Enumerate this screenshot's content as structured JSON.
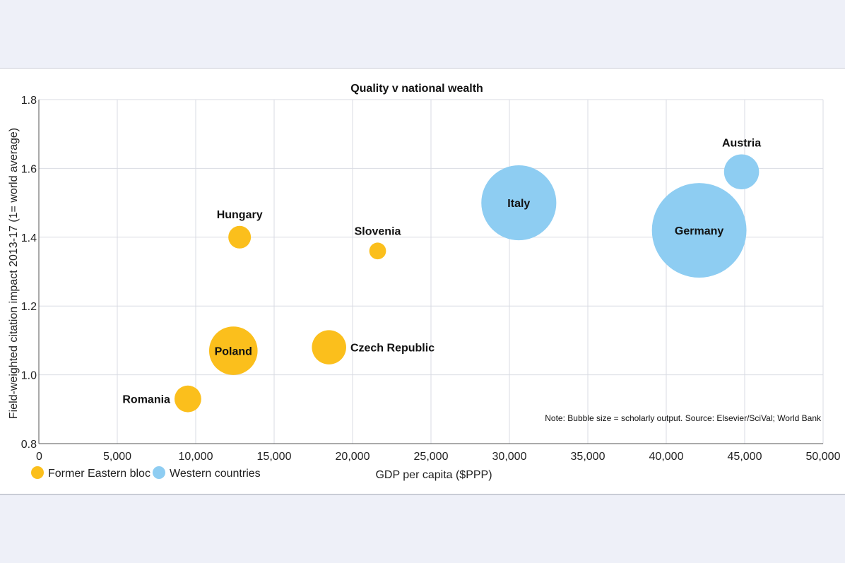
{
  "chart_data": {
    "type": "scatter",
    "title": "Quality v national wealth",
    "xlabel": "GDP per capita ($PPP)",
    "ylabel": "Field-weighted citation impact 2013-17 (1= world average)",
    "xlim": [
      0,
      50000
    ],
    "ylim": [
      0.8,
      1.8
    ],
    "x_ticks": [
      "0",
      "5,000",
      "10,000",
      "15,000",
      "20,000",
      "25,000",
      "30,000",
      "35,000",
      "40,000",
      "45,000",
      "50,000"
    ],
    "y_ticks": [
      "0.8",
      "1.0",
      "1.2",
      "1.4",
      "1.6",
      "1.8"
    ],
    "grid": true,
    "note": "Note: Bubble size = scholarly output. Source: Elsevier/SciVal; World Bank",
    "legend_position": "bottom-left",
    "series": [
      {
        "name": "Former Eastern bloc",
        "color": "#fbbf1c",
        "points": [
          {
            "label": "Hungary",
            "x": 12800,
            "y": 1.4,
            "size": 1.0
          },
          {
            "label": "Slovenia",
            "x": 21600,
            "y": 1.36,
            "size": 0.55
          },
          {
            "label": "Poland",
            "x": 12400,
            "y": 1.07,
            "size": 4.6
          },
          {
            "label": "Czech Republic",
            "x": 18500,
            "y": 1.08,
            "size": 2.3
          },
          {
            "label": "Romania",
            "x": 9500,
            "y": 0.93,
            "size": 1.4
          }
        ]
      },
      {
        "name": "Western countries",
        "color": "#8ecdf2",
        "points": [
          {
            "label": "Italy",
            "x": 30600,
            "y": 1.5,
            "size": 11.0
          },
          {
            "label": "Germany",
            "x": 42100,
            "y": 1.42,
            "size": 17.5
          },
          {
            "label": "Austria",
            "x": 44800,
            "y": 1.59,
            "size": 2.4
          }
        ]
      }
    ]
  }
}
